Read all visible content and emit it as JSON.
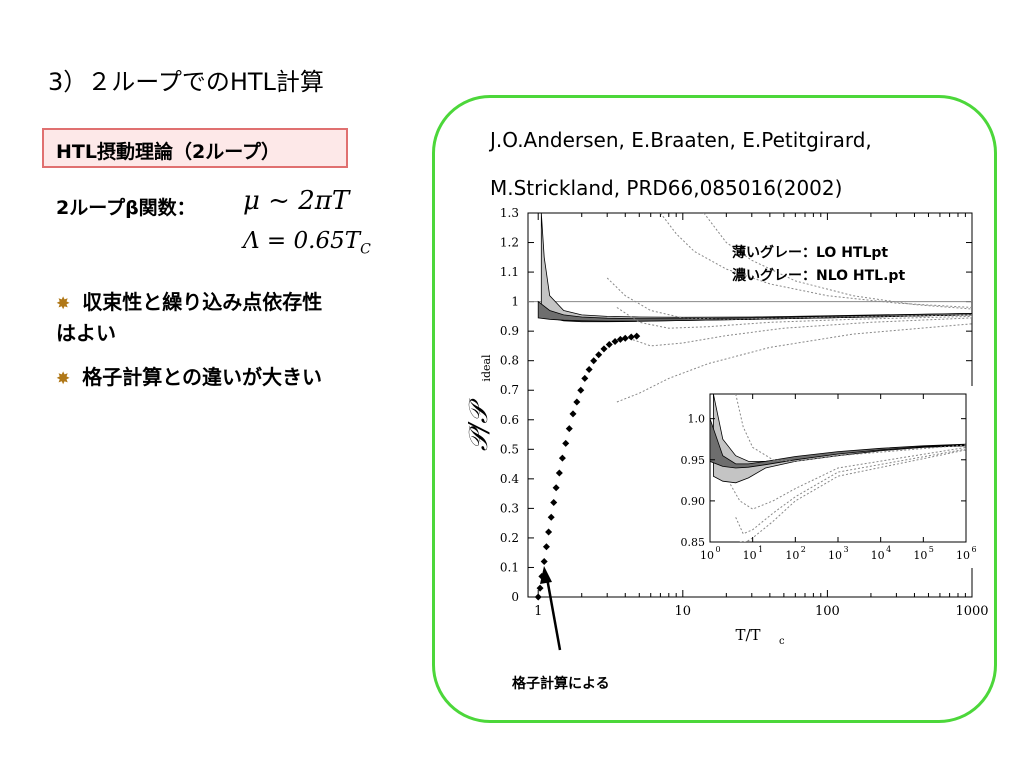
{
  "slide": {
    "title": "3）２ループでのHTL計算",
    "tag": "HTL摂動理論（2ループ）",
    "beta_label": "2ループβ関数：",
    "formula_mu": "μ ~ 2πT",
    "formula_lambda": "Λ = 0.65T",
    "formula_lambda_sub": "C",
    "bullet1_line1": "収束性と繰り込み点依存性",
    "bullet1_line2": "はよい",
    "bullet2": "格子計算との違いが大きい",
    "bullet_icon": "sparkle-icon"
  },
  "reference": {
    "line1": "J.O.Andersen, E.Braaten, E.Petitgirard,",
    "line2": "M.Strickland, PRD66,085016(2002)"
  },
  "chart_data": {
    "type": "line",
    "x_scale": "log",
    "xlim": [
      0.85,
      1000
    ],
    "ylim": [
      0,
      1.3
    ],
    "x_ticks": [
      "1",
      "10",
      "100",
      "1000"
    ],
    "y_ticks": [
      "0",
      "0.1",
      "0.2",
      "0.3",
      "0.4",
      "0.5",
      "0.6",
      "0.7",
      "0.8",
      "0.9",
      "1",
      "1.1",
      "1.2",
      "1.3"
    ],
    "xlabel": "T/T",
    "xlabel_sub": "c",
    "ylabel": "𝒫/𝒫",
    "ylabel_sub": "ideal",
    "legend": [
      {
        "label": "薄いグレー：LO HTLpt",
        "color": "#c0c0c0"
      },
      {
        "label": "濃いグレー：NLO HTL.pt",
        "color": "#707070"
      }
    ],
    "annotation": "格子計算による",
    "lattice_points": [
      [
        1.0,
        0.0
      ],
      [
        1.03,
        0.03
      ],
      [
        1.06,
        0.07
      ],
      [
        1.1,
        0.12
      ],
      [
        1.14,
        0.17
      ],
      [
        1.18,
        0.22
      ],
      [
        1.23,
        0.27
      ],
      [
        1.28,
        0.32
      ],
      [
        1.33,
        0.37
      ],
      [
        1.4,
        0.42
      ],
      [
        1.47,
        0.47
      ],
      [
        1.55,
        0.52
      ],
      [
        1.64,
        0.57
      ],
      [
        1.74,
        0.62
      ],
      [
        1.85,
        0.66
      ],
      [
        1.97,
        0.7
      ],
      [
        2.1,
        0.74
      ],
      [
        2.25,
        0.77
      ],
      [
        2.42,
        0.8
      ],
      [
        2.62,
        0.82
      ],
      [
        2.85,
        0.84
      ],
      [
        3.1,
        0.855
      ],
      [
        3.4,
        0.865
      ],
      [
        3.7,
        0.872
      ],
      [
        4.0,
        0.876
      ],
      [
        4.4,
        0.88
      ],
      [
        4.8,
        0.883
      ]
    ],
    "reference_line": 1.0,
    "lo_band": {
      "x": [
        1.05,
        1.1,
        1.2,
        1.5,
        2,
        3,
        5,
        10,
        30,
        100,
        300,
        1000
      ],
      "upper": [
        1.3,
        1.15,
        1.02,
        0.97,
        0.955,
        0.95,
        0.948,
        0.947,
        0.948,
        0.952,
        0.956,
        0.96
      ],
      "lower": [
        0.99,
        0.96,
        0.945,
        0.935,
        0.932,
        0.932,
        0.933,
        0.936,
        0.94,
        0.945,
        0.95,
        0.955
      ]
    },
    "nlo_band": {
      "x": [
        1.0,
        1.2,
        1.5,
        2,
        3,
        5,
        10,
        30,
        100,
        300,
        1000
      ],
      "upper": [
        1.0,
        0.97,
        0.955,
        0.948,
        0.944,
        0.942,
        0.942,
        0.945,
        0.95,
        0.955,
        0.96
      ],
      "lower": [
        0.945,
        0.94,
        0.937,
        0.935,
        0.934,
        0.934,
        0.936,
        0.94,
        0.945,
        0.95,
        0.955
      ]
    },
    "dotted_curves": [
      {
        "x": [
          7,
          9,
          12,
          20,
          40,
          100,
          300,
          1000
        ],
        "y": [
          1.3,
          1.23,
          1.17,
          1.11,
          1.06,
          1.02,
          0.995,
          0.98
        ]
      },
      {
        "x": [
          14,
          20,
          30,
          60,
          150,
          400,
          1000
        ],
        "y": [
          1.3,
          1.2,
          1.14,
          1.07,
          1.02,
          0.99,
          0.975
        ]
      },
      {
        "x": [
          3.0,
          4,
          6,
          10,
          20,
          60,
          200,
          1000
        ],
        "y": [
          1.08,
          1.02,
          0.97,
          0.945,
          0.94,
          0.945,
          0.95,
          0.955
        ]
      },
      {
        "x": [
          3.5,
          5,
          8,
          15,
          40,
          150,
          1000
        ],
        "y": [
          0.98,
          0.93,
          0.91,
          0.915,
          0.93,
          0.94,
          0.95
        ]
      },
      {
        "x": [
          4.0,
          6,
          10,
          20,
          50,
          200,
          1000
        ],
        "y": [
          0.88,
          0.85,
          0.86,
          0.885,
          0.91,
          0.93,
          0.945
        ]
      },
      {
        "x": [
          3.5,
          5,
          8,
          15,
          40,
          150,
          1000
        ],
        "y": [
          0.66,
          0.69,
          0.74,
          0.79,
          0.845,
          0.89,
          0.925
        ]
      }
    ],
    "inset": {
      "x_scale": "log",
      "xlim": [
        1,
        1000000
      ],
      "ylim": [
        0.85,
        1.03
      ],
      "x_ticks": [
        "10^0",
        "10^1",
        "10^2",
        "10^3",
        "10^4",
        "10^5",
        "10^6"
      ],
      "y_ticks": [
        "0.85",
        "0.90",
        "0.95",
        "1.0"
      ],
      "lo_band": {
        "x": [
          1.2,
          2,
          4,
          8,
          20,
          100,
          1000,
          10000,
          100000,
          1000000
        ],
        "upper": [
          1.03,
          0.975,
          0.955,
          0.948,
          0.948,
          0.952,
          0.958,
          0.963,
          0.966,
          0.968
        ],
        "lower": [
          0.93,
          0.924,
          0.922,
          0.928,
          0.94,
          0.948,
          0.955,
          0.961,
          0.965,
          0.967
        ]
      },
      "nlo_band": {
        "x": [
          1.0,
          2,
          4,
          8,
          20,
          100,
          1000,
          10000,
          100000,
          1000000
        ],
        "upper": [
          1.0,
          0.955,
          0.945,
          0.945,
          0.948,
          0.954,
          0.96,
          0.964,
          0.967,
          0.969
        ],
        "lower": [
          0.948,
          0.942,
          0.94,
          0.941,
          0.944,
          0.95,
          0.957,
          0.962,
          0.966,
          0.968
        ]
      },
      "dotted_curves": [
        {
          "x": [
            4,
            6,
            10,
            30,
            100,
            1000,
            1000000
          ],
          "y": [
            1.03,
            0.99,
            0.965,
            0.95,
            0.948,
            0.955,
            0.968
          ]
        },
        {
          "x": [
            3,
            5,
            10,
            30,
            100,
            1000,
            1000000
          ],
          "y": [
            0.92,
            0.9,
            0.89,
            0.9,
            0.915,
            0.94,
            0.965
          ]
        },
        {
          "x": [
            4,
            6,
            10,
            30,
            100,
            1000,
            1000000
          ],
          "y": [
            0.88,
            0.86,
            0.865,
            0.885,
            0.905,
            0.935,
            0.963
          ]
        },
        {
          "x": [
            5,
            7,
            10,
            30,
            100,
            1000,
            1000000
          ],
          "y": [
            0.85,
            0.85,
            0.855,
            0.875,
            0.9,
            0.93,
            0.962
          ]
        }
      ]
    }
  }
}
